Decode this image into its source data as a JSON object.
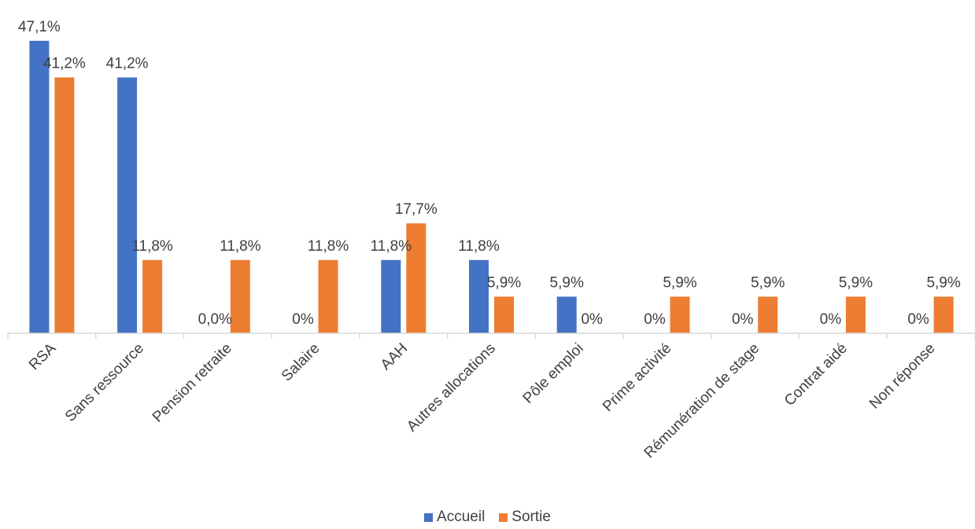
{
  "chart_data": {
    "type": "bar",
    "categories": [
      "RSA",
      "Sans ressource",
      "Pension retraite",
      "Salaire",
      "AAH",
      "Autres allocations",
      "Pôle emploi",
      "Prime activité",
      "Rémunération de stage",
      "Contrat aidé",
      "Non réponse"
    ],
    "series": [
      {
        "name": "Accueil",
        "color": "#4472C4",
        "values": [
          47.1,
          41.2,
          0,
          0,
          11.8,
          11.8,
          5.9,
          0,
          0,
          0,
          0
        ],
        "labels": [
          "47,1%",
          "41,2%",
          "0,0%",
          "0%",
          "11,8%",
          "11,8%",
          "5,9%",
          "0%",
          "0%",
          "0%",
          "0%"
        ]
      },
      {
        "name": "Sortie",
        "color": "#ED7D31",
        "values": [
          41.2,
          11.8,
          11.8,
          11.8,
          17.7,
          5.9,
          0,
          5.9,
          5.9,
          5.9,
          5.9
        ],
        "labels": [
          "41,2%",
          "11,8%",
          "11,8%",
          "11,8%",
          "17,7%",
          "5,9%",
          "0%",
          "5,9%",
          "5,9%",
          "5,9%",
          "5,9%"
        ]
      }
    ],
    "title": "",
    "xlabel": "",
    "ylabel": "",
    "ylim": [
      0,
      50
    ],
    "grid": false,
    "legend_position": "bottom"
  }
}
